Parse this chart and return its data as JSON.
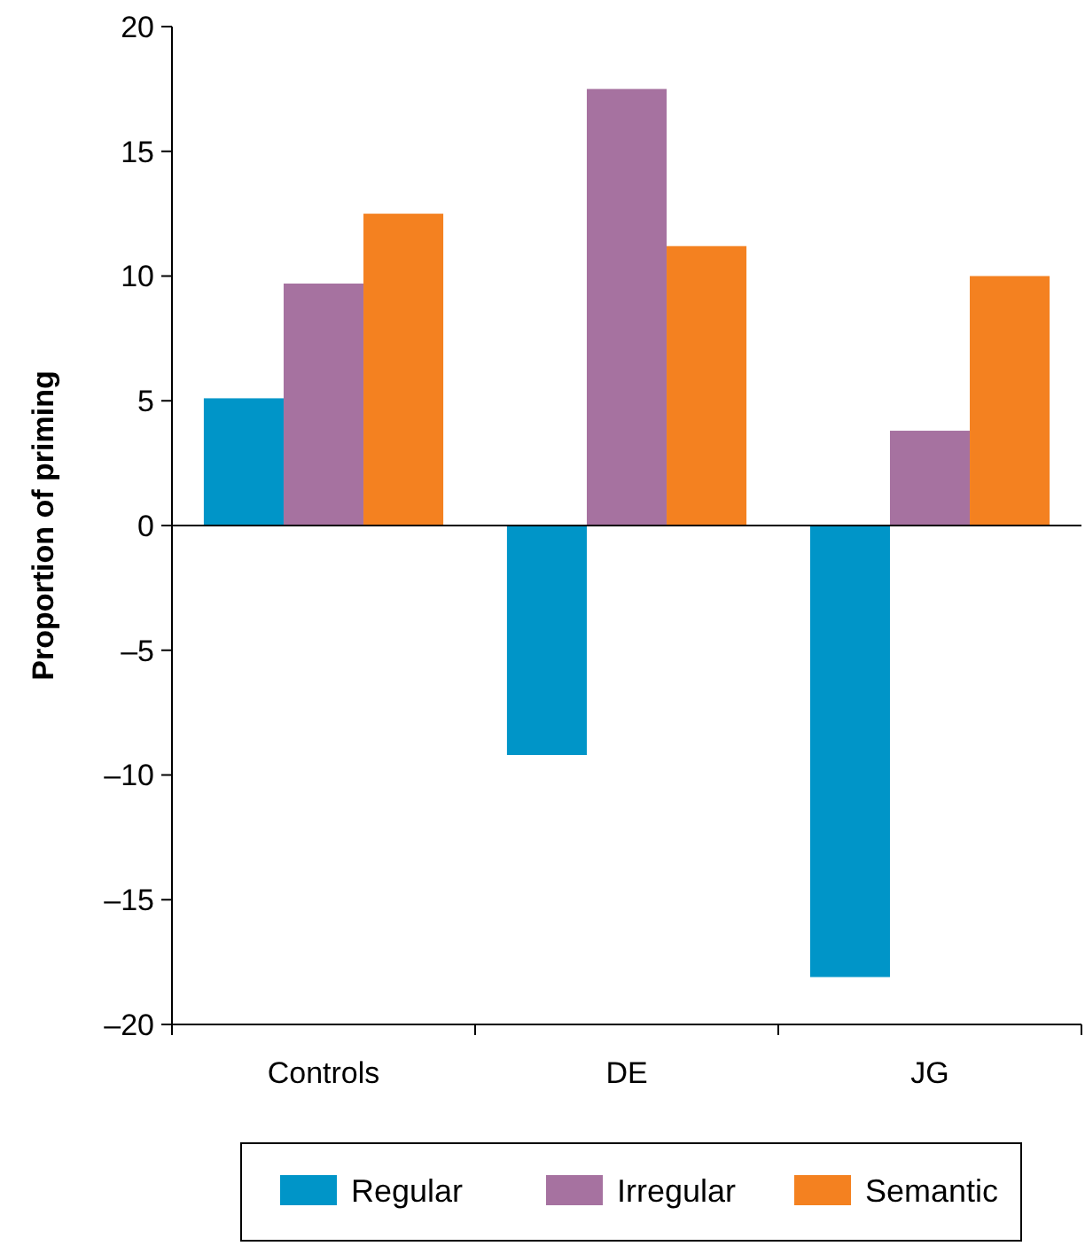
{
  "chart_data": {
    "type": "bar",
    "ylabel": "Proportion of priming",
    "categories": [
      "Controls",
      "DE",
      "JG"
    ],
    "series": [
      {
        "name": "Regular",
        "color": "#0095c8",
        "values": [
          5.1,
          -9.2,
          -18.1
        ]
      },
      {
        "name": "Irregular",
        "color": "#a672a0",
        "values": [
          9.7,
          17.5,
          3.8
        ]
      },
      {
        "name": "Semantic",
        "color": "#f48120",
        "values": [
          12.5,
          11.2,
          10.0
        ]
      }
    ],
    "ylim": [
      -20,
      20
    ],
    "yticks": [
      {
        "value": -20,
        "label": "–20"
      },
      {
        "value": -15,
        "label": "–15"
      },
      {
        "value": -10,
        "label": "–10"
      },
      {
        "value": -5,
        "label": "–5"
      },
      0,
      5,
      10,
      15,
      20
    ],
    "legend": "bottom"
  }
}
